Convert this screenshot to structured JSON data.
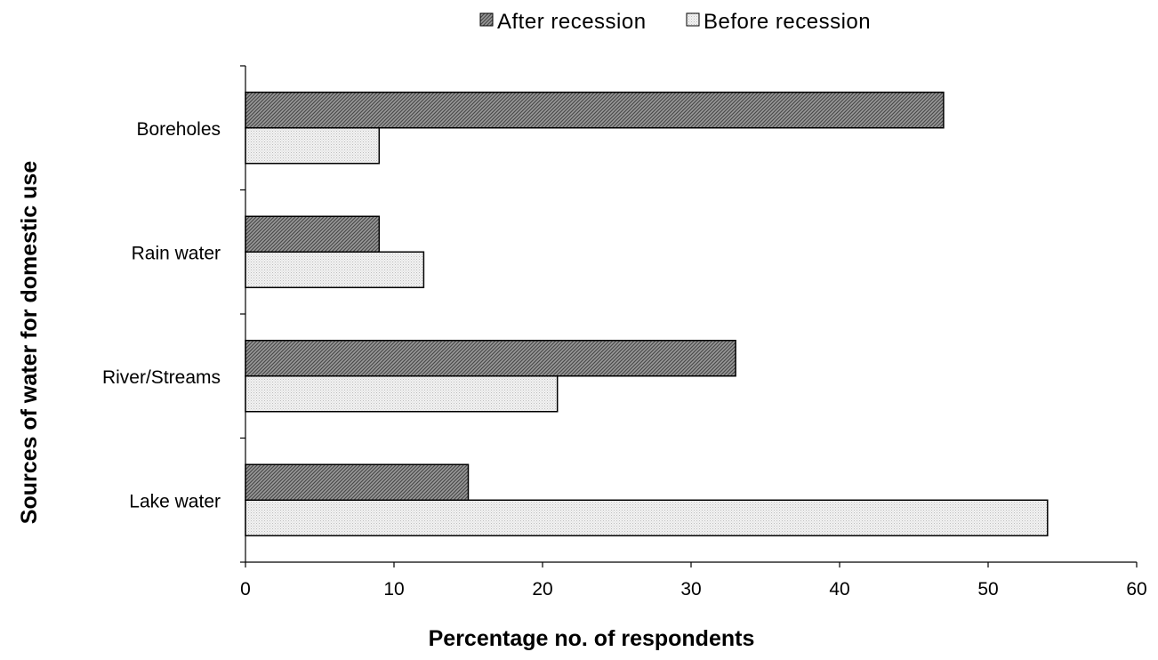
{
  "chart_data": {
    "type": "bar",
    "orientation": "horizontal",
    "categories": [
      "Boreholes",
      "Rain water",
      "River/Streams",
      "Lake water"
    ],
    "series": [
      {
        "name": "After recession",
        "values": [
          47,
          9,
          33,
          15
        ],
        "color": "#8c8c8c",
        "pattern": "dense-hatch"
      },
      {
        "name": "Before recession",
        "values": [
          9,
          12,
          21,
          54
        ],
        "color": "#e6e6e6",
        "pattern": "light-dots"
      }
    ],
    "xlabel": "Percentage no. of respondents",
    "ylabel": "Sources of water for domestic use",
    "xlim": [
      0,
      60
    ],
    "xticks": [
      0,
      10,
      20,
      30,
      40,
      50,
      60
    ],
    "grid": false,
    "legend_position": "top-center"
  }
}
